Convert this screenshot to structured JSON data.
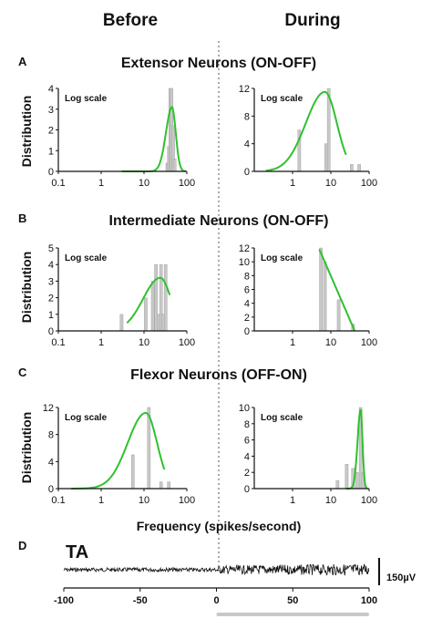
{
  "columns": {
    "left": "Before",
    "right": "During"
  },
  "panels": [
    {
      "letter": "A",
      "title": "Extensor Neurons (ON-OFF)"
    },
    {
      "letter": "B",
      "title": "Intermediate Neurons (ON-OFF)"
    },
    {
      "letter": "C",
      "title": "Flexor Neurons (OFF-ON)"
    },
    {
      "letter": "D",
      "title": ""
    }
  ],
  "shared_ylabel": "Distribution",
  "shared_xlabel": "Frequency (spikes/second)",
  "scale_note": "Log scale",
  "colors": {
    "bars": "#b8b8b8",
    "fit": "#2fc12f",
    "trace": "#111111",
    "bar_gray": "#c8c8c8",
    "divider": "#555555"
  },
  "chart_data": [
    {
      "id": "A-before",
      "type": "bar",
      "x_scale": "log",
      "xlim": [
        0.1,
        100
      ],
      "ylim": [
        0,
        4
      ],
      "xticks": [
        0.1,
        1,
        10,
        100
      ],
      "yticks": [
        0,
        1,
        2,
        3,
        4
      ],
      "bins_x": [
        35,
        38,
        41,
        44,
        48,
        52
      ],
      "bins_y": [
        0.4,
        1.2,
        4,
        4,
        2.2,
        0.6
      ],
      "fit": {
        "type": "lognormal",
        "peak_x": 45,
        "peak_y": 3.1,
        "width": 0.14,
        "x_from": 3,
        "x_to": 95
      }
    },
    {
      "id": "A-during",
      "type": "bar",
      "x_scale": "log",
      "xlim": [
        0.1,
        100
      ],
      "ylim": [
        0,
        12
      ],
      "xticks": [
        1,
        10,
        100
      ],
      "yticks": [
        0,
        4,
        8,
        12
      ],
      "bins_x": [
        1.5,
        7.5,
        8.8,
        35,
        55
      ],
      "bins_y": [
        6,
        4,
        12,
        1,
        1
      ],
      "fit": {
        "type": "lognormal",
        "peak_x": 7,
        "peak_y": 11.5,
        "width": 0.5,
        "x_from": 0.2,
        "x_to": 25
      }
    },
    {
      "id": "B-before",
      "type": "bar",
      "x_scale": "log",
      "xlim": [
        0.1,
        100
      ],
      "ylim": [
        0,
        5
      ],
      "xticks": [
        0.1,
        1,
        10,
        100
      ],
      "yticks": [
        0,
        1,
        2,
        3,
        4,
        5
      ],
      "bins_x": [
        3,
        11,
        16,
        19,
        22,
        25,
        28,
        32
      ],
      "bins_y": [
        1,
        2,
        3,
        4,
        1,
        4,
        1,
        4
      ],
      "fit": {
        "type": "lognormal",
        "peak_x": 24,
        "peak_y": 3.2,
        "width": 0.4,
        "x_from": 4,
        "x_to": 40
      }
    },
    {
      "id": "B-during",
      "type": "bar",
      "x_scale": "log",
      "xlim": [
        0.1,
        100
      ],
      "ylim": [
        0,
        12
      ],
      "xticks": [
        1,
        10,
        100
      ],
      "yticks": [
        0,
        2,
        4,
        6,
        8,
        10,
        12
      ],
      "bins_x": [
        5.5,
        7,
        16,
        38
      ],
      "bins_y": [
        12,
        10,
        4.5,
        1
      ],
      "fit": {
        "type": "decay",
        "x_from": 5,
        "x_to": 42,
        "y_from": 11.8,
        "y_to": 0
      }
    },
    {
      "id": "C-before",
      "type": "bar",
      "x_scale": "log",
      "xlim": [
        0.1,
        100
      ],
      "ylim": [
        0,
        12
      ],
      "xticks": [
        0.1,
        1,
        10,
        100
      ],
      "yticks": [
        0,
        4,
        8,
        12
      ],
      "bins_x": [
        5.5,
        13,
        25,
        38
      ],
      "bins_y": [
        5,
        12,
        1,
        1
      ],
      "fit": {
        "type": "lognormal",
        "peak_x": 11,
        "peak_y": 11.2,
        "width": 0.42,
        "x_from": 0.2,
        "x_to": 30
      }
    },
    {
      "id": "C-during",
      "type": "bar",
      "x_scale": "log",
      "xlim": [
        0.1,
        100
      ],
      "ylim": [
        0,
        10
      ],
      "xticks": [
        1,
        10,
        100
      ],
      "yticks": [
        0,
        2,
        4,
        6,
        8,
        10
      ],
      "bins_x": [
        15,
        26,
        38,
        48,
        60,
        70
      ],
      "bins_y": [
        1,
        3,
        2.5,
        2,
        10,
        2
      ],
      "fit": {
        "type": "lognormal",
        "peak_x": 60,
        "peak_y": 9.7,
        "width": 0.08,
        "x_from": 25,
        "x_to": 90
      }
    },
    {
      "id": "D",
      "type": "line",
      "trace_label": "TA",
      "xlim": [
        -100,
        100
      ],
      "xticks": [
        -100,
        -50,
        0,
        50,
        100
      ],
      "scalebar_label": "150µV",
      "amplitude_before": 0.18,
      "amplitude_during": 0.55,
      "gray_bar_from": 0,
      "gray_bar_to": 100
    }
  ]
}
